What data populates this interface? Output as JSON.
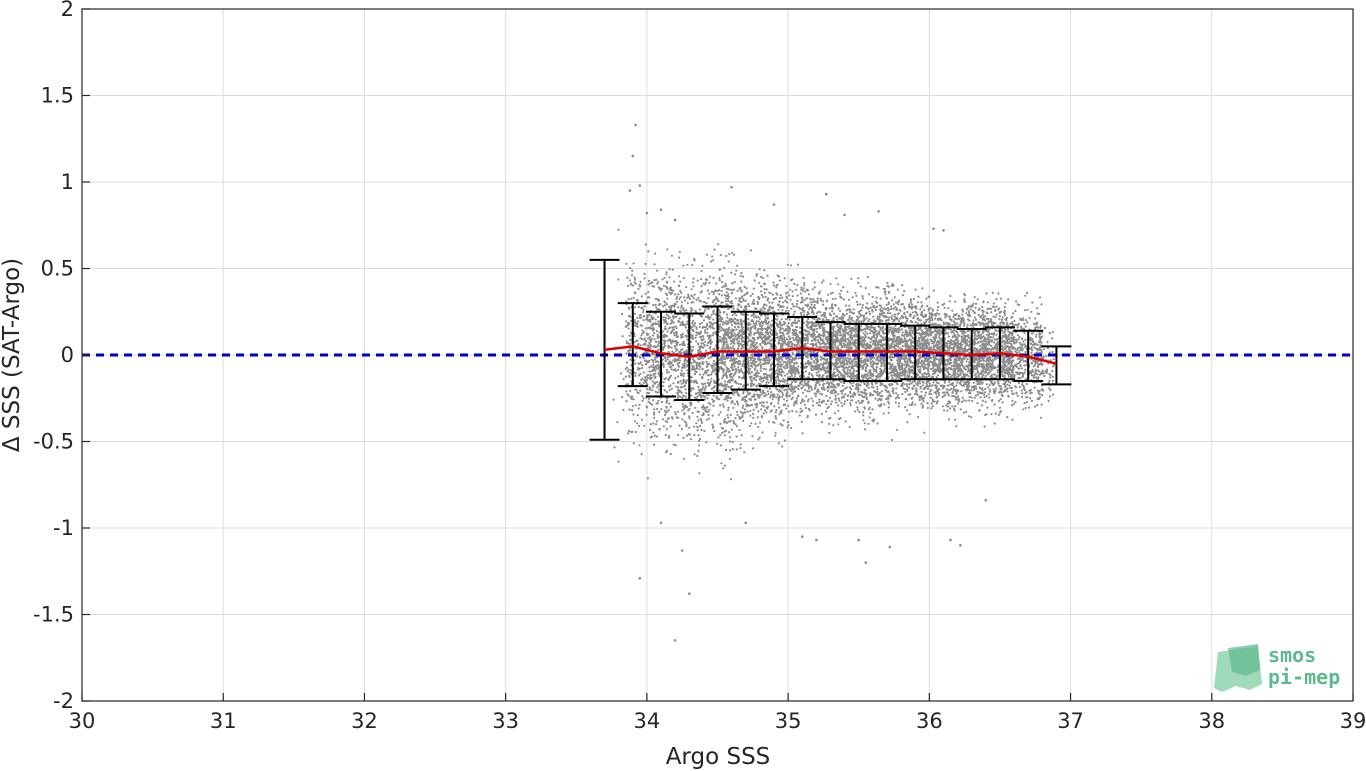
{
  "chart_data": {
    "type": "scatter",
    "title": "",
    "xlabel": "Argo SSS",
    "ylabel": "Δ SSS (SAT-Argo)",
    "xlim": [
      30,
      39
    ],
    "ylim": [
      -2,
      2
    ],
    "x_ticks": [
      "30",
      "31",
      "32",
      "33",
      "34",
      "35",
      "36",
      "37",
      "38",
      "39"
    ],
    "y_ticks": [
      "2",
      "1.5",
      "1",
      "0.5",
      "0",
      "-0.5",
      "-1",
      "-1.5",
      "-2"
    ],
    "grid": true,
    "zero_line": {
      "y": 0,
      "style": "dashed",
      "color": "#0000cc"
    },
    "scatter_color": "#8c8c8c",
    "mean_line_color": "#e00000",
    "errorbar_color": "#000000",
    "errorbars": [
      {
        "x": 33.7,
        "low": -0.49,
        "high": 0.55,
        "mean": 0.03
      },
      {
        "x": 33.9,
        "low": -0.18,
        "high": 0.3,
        "mean": 0.05
      },
      {
        "x": 34.1,
        "low": -0.24,
        "high": 0.25,
        "mean": 0.01
      },
      {
        "x": 34.3,
        "low": -0.26,
        "high": 0.24,
        "mean": -0.01
      },
      {
        "x": 34.5,
        "low": -0.22,
        "high": 0.28,
        "mean": 0.02
      },
      {
        "x": 34.7,
        "low": -0.2,
        "high": 0.25,
        "mean": 0.02
      },
      {
        "x": 34.9,
        "low": -0.18,
        "high": 0.24,
        "mean": 0.02
      },
      {
        "x": 35.1,
        "low": -0.14,
        "high": 0.22,
        "mean": 0.04
      },
      {
        "x": 35.3,
        "low": -0.14,
        "high": 0.19,
        "mean": 0.02
      },
      {
        "x": 35.5,
        "low": -0.15,
        "high": 0.18,
        "mean": 0.02
      },
      {
        "x": 35.7,
        "low": -0.15,
        "high": 0.18,
        "mean": 0.02
      },
      {
        "x": 35.9,
        "low": -0.14,
        "high": 0.17,
        "mean": 0.02
      },
      {
        "x": 36.1,
        "low": -0.14,
        "high": 0.16,
        "mean": 0.01
      },
      {
        "x": 36.3,
        "low": -0.14,
        "high": 0.15,
        "mean": 0.0
      },
      {
        "x": 36.5,
        "low": -0.14,
        "high": 0.16,
        "mean": 0.01
      },
      {
        "x": 36.7,
        "low": -0.15,
        "high": 0.14,
        "mean": -0.01
      },
      {
        "x": 36.9,
        "low": -0.17,
        "high": 0.05,
        "mean": -0.05
      }
    ],
    "scatter_outliers": [
      [
        33.92,
        1.33
      ],
      [
        33.9,
        1.15
      ],
      [
        33.88,
        0.95
      ],
      [
        33.95,
        0.98
      ],
      [
        34.0,
        0.82
      ],
      [
        34.1,
        0.84
      ],
      [
        34.2,
        0.78
      ],
      [
        34.6,
        0.97
      ],
      [
        34.9,
        0.87
      ],
      [
        35.27,
        0.93
      ],
      [
        35.4,
        0.81
      ],
      [
        35.64,
        0.83
      ],
      [
        36.1,
        0.72
      ],
      [
        36.03,
        0.73
      ],
      [
        33.95,
        -1.29
      ],
      [
        34.1,
        -0.97
      ],
      [
        34.25,
        -1.13
      ],
      [
        34.3,
        -1.38
      ],
      [
        34.2,
        -1.65
      ],
      [
        34.7,
        -0.97
      ],
      [
        35.1,
        -1.05
      ],
      [
        35.2,
        -1.07
      ],
      [
        35.55,
        -1.2
      ],
      [
        35.72,
        -1.11
      ],
      [
        35.5,
        -1.07
      ],
      [
        36.15,
        -1.07
      ],
      [
        36.22,
        -1.1
      ],
      [
        36.4,
        -0.84
      ]
    ]
  },
  "logo": {
    "line1": "smos",
    "line2": "pi-mep"
  }
}
